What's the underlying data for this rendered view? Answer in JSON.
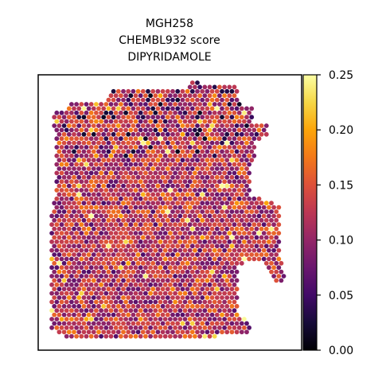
{
  "chart_data": {
    "type": "scatter",
    "subtype": "spatial-spot-map",
    "title_lines": [
      "MGH258",
      "CHEMBL932 score",
      "DIPYRIDAMOLE"
    ],
    "colorbar": {
      "colormap": "inferno",
      "vmin": 0.0,
      "vmax": 0.25,
      "ticks": [
        0.0,
        0.05,
        0.1,
        0.15,
        0.2,
        0.25
      ],
      "tick_labels": [
        "0.00",
        "0.05",
        "0.10",
        "0.15",
        "0.20",
        "0.25"
      ]
    },
    "axes_visible": false,
    "grid": false,
    "legend": "colorbar-right",
    "value_summary": {
      "typical": 0.12,
      "low_spots_near_top": 0.02,
      "max": 0.25
    }
  }
}
